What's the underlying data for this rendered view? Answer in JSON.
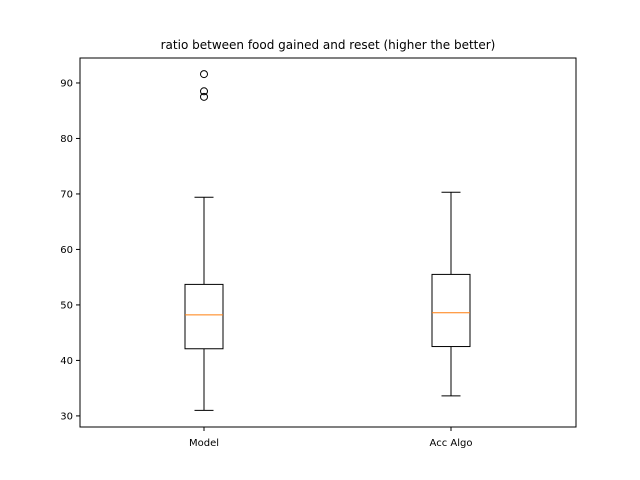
{
  "chart_data": {
    "type": "boxplot",
    "title": "ratio between food gained and reset (higher the better)",
    "xlabel": "",
    "ylabel": "",
    "ylim": [
      28,
      94.5
    ],
    "yticks": [
      30,
      40,
      50,
      60,
      70,
      80,
      90
    ],
    "grid": false,
    "categories": [
      "Model",
      "Acc Algo"
    ],
    "boxes": [
      {
        "category": "Model",
        "whisker_low": 31,
        "q1": 42.1,
        "median": 48.2,
        "q3": 53.7,
        "whisker_high": 69.4,
        "outliers": [
          87.5,
          88.5,
          91.6
        ]
      },
      {
        "category": "Acc Algo",
        "whisker_low": 33.6,
        "q1": 42.5,
        "median": 48.6,
        "q3": 55.5,
        "whisker_high": 70.3,
        "outliers": []
      }
    ],
    "colors": {
      "box": "#000000",
      "median": "#ff7f0e",
      "outlier": "#000000"
    }
  }
}
